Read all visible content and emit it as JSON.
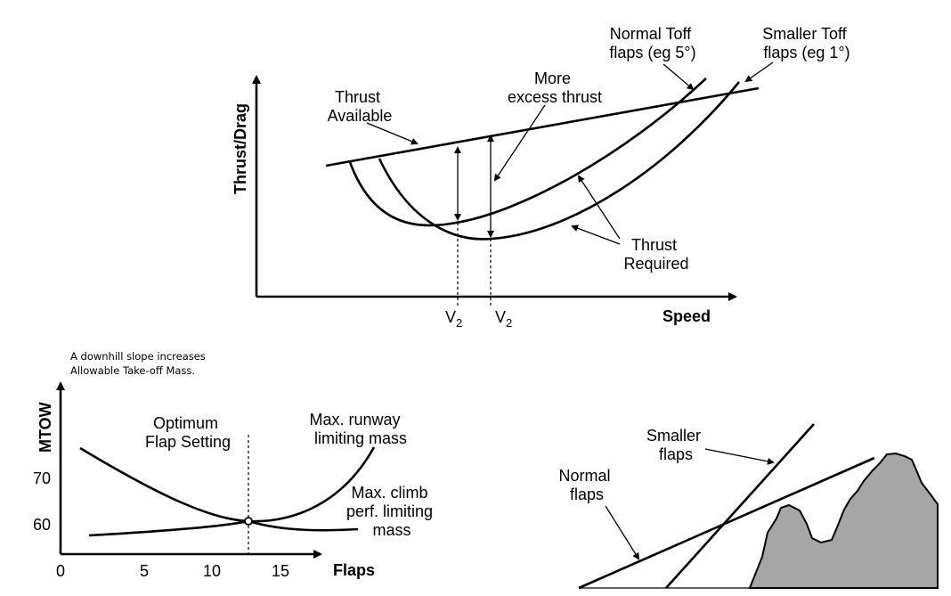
{
  "top_diagram": {
    "y_axis_label": "Thrust/Drag",
    "x_axis_label": "Speed",
    "thrust_available": [
      "Thrust",
      "Available"
    ],
    "more_excess_thrust": [
      "More",
      "excess thrust"
    ],
    "normal_toff_flaps": [
      "Normal Toff",
      "flaps (eg 5°)"
    ],
    "smaller_toff_flaps": [
      "Smaller Toff",
      "flaps (eg 1°)"
    ],
    "thrust_required": [
      "Thrust",
      "Required"
    ],
    "v2_left": {
      "main": "V",
      "sub": "2"
    },
    "v2_right": {
      "main": "V",
      "sub": "2"
    }
  },
  "note": [
    "A downhill slope increases",
    "Allowable Take-off Mass."
  ],
  "mtow_chart": {
    "y_axis_label": "MTOW",
    "x_axis_label": "Flaps",
    "y_ticks": [
      "70",
      "60"
    ],
    "x_ticks": [
      "0",
      "5",
      "10",
      "15"
    ],
    "optimum_label": [
      "Optimum",
      "Flap Setting"
    ],
    "runway_label": [
      "Max. runway",
      "limiting mass"
    ],
    "climb_label": [
      "Max. climb",
      "perf. limiting",
      "mass"
    ]
  },
  "obstacle_diagram": {
    "smaller_flaps": [
      "Smaller",
      "flaps"
    ],
    "normal_flaps": [
      "Normal",
      "flaps"
    ]
  }
}
